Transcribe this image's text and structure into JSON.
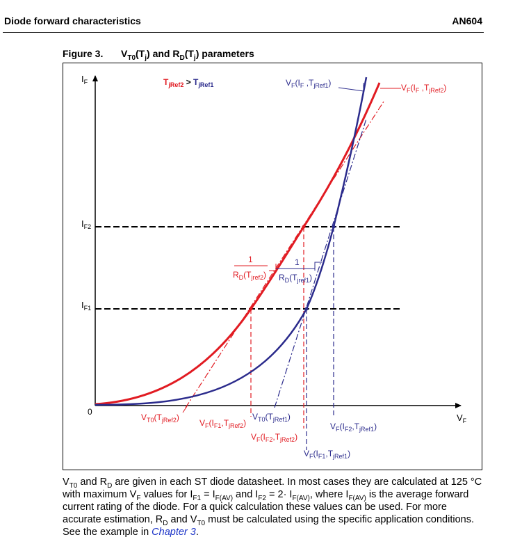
{
  "header": {
    "left": "Diode forward characteristics",
    "right": "AN604"
  },
  "figure": {
    "number": "Figure 3.",
    "title": {
      "v": "V",
      "t0": "T0",
      "tj1": "(T",
      "j": "j",
      "close1": ") and R",
      "d": "D",
      "tj2": "(T",
      "j2": "j",
      "close2": ") parameters"
    },
    "colors": {
      "red": "#e11b22",
      "blue": "#2b2b8c",
      "dash": "#000000"
    },
    "legend": {
      "t": "T",
      "ref2": "jRef2",
      "gt": " > ",
      "t2": "T",
      "ref1": "jRef1"
    },
    "axes": {
      "y": "I",
      "y_sub": "F",
      "x": "V",
      "x_sub": "F",
      "origin": "0"
    },
    "levels": {
      "if2": "I",
      "if2_sub": "F2",
      "if1": "I",
      "if1_sub": "F1"
    },
    "labels": {
      "vf_ref1": {
        "v": "V",
        "f": "F",
        "args": "(I",
        "i": "F",
        "comma": " ,T",
        "j": "jRef1",
        "end": ")"
      },
      "vf_ref2": {
        "v": "V",
        "f": "F",
        "args": "(I",
        "i": "F",
        "comma": " ,T",
        "j": "jRef2",
        "end": ")"
      },
      "rd_red": {
        "num": "1",
        "r": "R",
        "d": "D",
        "open": "(T",
        "j": "jref2",
        "close": ")"
      },
      "rd_blue": {
        "num": "1",
        "r": "R",
        "d": "D",
        "open": "(T",
        "j": "jref1",
        "close": ")"
      },
      "vt0_red": {
        "v": "V",
        "t0": "T0",
        "open": "(T",
        "j": "jRef2",
        "close": ")"
      },
      "vt0_blue": {
        "v": "V",
        "t0": "T0",
        "open": "(T",
        "j": "jRef1",
        "close": ")"
      },
      "vf_if1_red": {
        "v": "V",
        "f": "F",
        "open": "(I",
        "i": "F1",
        "comma": ",T",
        "j": "jRef2",
        "close": ")"
      },
      "vf_if2_red": {
        "v": "V",
        "f": "F",
        "open": "(I",
        "i": "F2",
        "comma": ",T",
        "j": "jRef2",
        "close": ")"
      },
      "vf_if2_blue": {
        "v": "V",
        "f": "F",
        "open": "(I",
        "i": "F2",
        "comma": ",T",
        "j": "jRef1",
        "close": ")"
      },
      "vf_if1_blue": {
        "v": "V",
        "f": "F",
        "open": "(I",
        "i": "F1",
        "comma": ",T",
        "j": "jRef1",
        "close": ")"
      }
    }
  },
  "paragraph": {
    "p1": "V",
    "s1": "T0",
    "p2": " and R",
    "s2": "D",
    "p3": " are given in each ST diode datasheet. In most cases they are calculated at 125 °C with maximum V",
    "s3": "F",
    "p4": " values for I",
    "s4": "F1",
    "p5": " = I",
    "s5": "F(AV)",
    "p6": " and I",
    "s6": "F2",
    "p7": " = 2· I",
    "s7": "F(AV)",
    "p8": ", where I",
    "s8": "F(AV)",
    "p9": " is the average forward current rating of the diode. For a quick calculation these values can be used. For more accurate estimation, R",
    "s9": "D",
    "p10": " and V",
    "s10": "T0",
    "p11": " must be calculated using the specific application conditions. See the example in ",
    "link": "Chapter 3",
    "p12": "."
  }
}
